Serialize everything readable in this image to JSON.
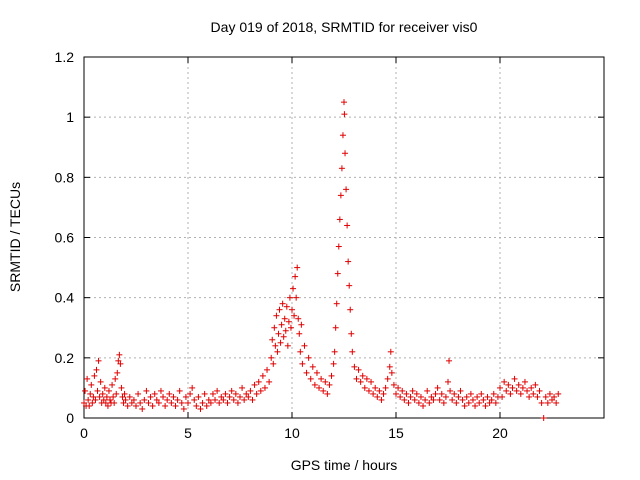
{
  "chart_data": {
    "type": "scatter",
    "title": "Day 019 of 2018, SRMTID for receiver vis0",
    "xlabel": "GPS time / hours",
    "ylabel": "SRMTID / TECUs",
    "xlim": [
      0,
      25
    ],
    "ylim": [
      0,
      1.2
    ],
    "xticks": [
      0,
      5,
      10,
      15,
      20
    ],
    "xtick_labels": [
      "0",
      "5",
      "10",
      "15",
      "20"
    ],
    "yticks": [
      0,
      0.2,
      0.4,
      0.6,
      0.8,
      1.0,
      1.2
    ],
    "ytick_labels": [
      "0",
      "0.2",
      "0.4",
      "0.6",
      "0.8",
      "1",
      "1.2"
    ],
    "grid": true,
    "marker": "+",
    "color": "#e00000",
    "series": [
      {
        "name": "SRMTID vis0",
        "points": [
          [
            0.0,
            0.05
          ],
          [
            0.05,
            0.09
          ],
          [
            0.1,
            0.04
          ],
          [
            0.15,
            0.13
          ],
          [
            0.2,
            0.06
          ],
          [
            0.25,
            0.04
          ],
          [
            0.3,
            0.08
          ],
          [
            0.35,
            0.11
          ],
          [
            0.4,
            0.05
          ],
          [
            0.45,
            0.07
          ],
          [
            0.5,
            0.14
          ],
          [
            0.55,
            0.06
          ],
          [
            0.6,
            0.16
          ],
          [
            0.65,
            0.09
          ],
          [
            0.7,
            0.19
          ],
          [
            0.75,
            0.07
          ],
          [
            0.8,
            0.12
          ],
          [
            0.85,
            0.05
          ],
          [
            0.9,
            0.08
          ],
          [
            0.95,
            0.06
          ],
          [
            1.0,
            0.1
          ],
          [
            1.05,
            0.05
          ],
          [
            1.1,
            0.07
          ],
          [
            1.15,
            0.04
          ],
          [
            1.2,
            0.09
          ],
          [
            1.25,
            0.06
          ],
          [
            1.3,
            0.05
          ],
          [
            1.35,
            0.11
          ],
          [
            1.4,
            0.07
          ],
          [
            1.45,
            0.05
          ],
          [
            1.5,
            0.13
          ],
          [
            1.55,
            0.08
          ],
          [
            1.6,
            0.15
          ],
          [
            1.65,
            0.19
          ],
          [
            1.7,
            0.21
          ],
          [
            1.75,
            0.18
          ],
          [
            1.8,
            0.1
          ],
          [
            1.85,
            0.07
          ],
          [
            1.9,
            0.05
          ],
          [
            1.95,
            0.08
          ],
          [
            2.0,
            0.06
          ],
          [
            2.1,
            0.04
          ],
          [
            2.2,
            0.07
          ],
          [
            2.3,
            0.05
          ],
          [
            2.4,
            0.06
          ],
          [
            2.5,
            0.04
          ],
          [
            2.6,
            0.08
          ],
          [
            2.7,
            0.05
          ],
          [
            2.8,
            0.03
          ],
          [
            2.9,
            0.06
          ],
          [
            3.0,
            0.09
          ],
          [
            3.1,
            0.05
          ],
          [
            3.2,
            0.07
          ],
          [
            3.3,
            0.04
          ],
          [
            3.4,
            0.08
          ],
          [
            3.5,
            0.06
          ],
          [
            3.6,
            0.05
          ],
          [
            3.7,
            0.09
          ],
          [
            3.8,
            0.07
          ],
          [
            3.9,
            0.04
          ],
          [
            4.0,
            0.06
          ],
          [
            4.1,
            0.08
          ],
          [
            4.2,
            0.05
          ],
          [
            4.3,
            0.07
          ],
          [
            4.4,
            0.04
          ],
          [
            4.5,
            0.06
          ],
          [
            4.6,
            0.09
          ],
          [
            4.7,
            0.05
          ],
          [
            4.8,
            0.03
          ],
          [
            4.9,
            0.07
          ],
          [
            5.0,
            0.05
          ],
          [
            5.1,
            0.08
          ],
          [
            5.2,
            0.1
          ],
          [
            5.3,
            0.06
          ],
          [
            5.4,
            0.04
          ],
          [
            5.5,
            0.07
          ],
          [
            5.6,
            0.03
          ],
          [
            5.7,
            0.05
          ],
          [
            5.8,
            0.08
          ],
          [
            5.9,
            0.04
          ],
          [
            6.0,
            0.06
          ],
          [
            6.1,
            0.05
          ],
          [
            6.2,
            0.08
          ],
          [
            6.3,
            0.06
          ],
          [
            6.4,
            0.09
          ],
          [
            6.5,
            0.05
          ],
          [
            6.6,
            0.07
          ],
          [
            6.7,
            0.06
          ],
          [
            6.8,
            0.08
          ],
          [
            6.9,
            0.05
          ],
          [
            7.0,
            0.07
          ],
          [
            7.1,
            0.09
          ],
          [
            7.2,
            0.06
          ],
          [
            7.3,
            0.08
          ],
          [
            7.4,
            0.05
          ],
          [
            7.5,
            0.07
          ],
          [
            7.6,
            0.1
          ],
          [
            7.7,
            0.06
          ],
          [
            7.8,
            0.08
          ],
          [
            7.9,
            0.07
          ],
          [
            8.0,
            0.09
          ],
          [
            8.1,
            0.06
          ],
          [
            8.2,
            0.11
          ],
          [
            8.3,
            0.08
          ],
          [
            8.4,
            0.12
          ],
          [
            8.5,
            0.09
          ],
          [
            8.6,
            0.14
          ],
          [
            8.7,
            0.1
          ],
          [
            8.8,
            0.16
          ],
          [
            8.9,
            0.12
          ],
          [
            9.0,
            0.2
          ],
          [
            9.05,
            0.26
          ],
          [
            9.1,
            0.18
          ],
          [
            9.15,
            0.3
          ],
          [
            9.2,
            0.24
          ],
          [
            9.25,
            0.34
          ],
          [
            9.3,
            0.22
          ],
          [
            9.35,
            0.28
          ],
          [
            9.4,
            0.36
          ],
          [
            9.45,
            0.25
          ],
          [
            9.5,
            0.31
          ],
          [
            9.55,
            0.38
          ],
          [
            9.6,
            0.27
          ],
          [
            9.65,
            0.33
          ],
          [
            9.7,
            0.29
          ],
          [
            9.75,
            0.37
          ],
          [
            9.8,
            0.24
          ],
          [
            9.85,
            0.32
          ],
          [
            9.9,
            0.4
          ],
          [
            9.95,
            0.3
          ],
          [
            10.0,
            0.36
          ],
          [
            10.05,
            0.43
          ],
          [
            10.1,
            0.34
          ],
          [
            10.15,
            0.47
          ],
          [
            10.2,
            0.4
          ],
          [
            10.25,
            0.5
          ],
          [
            10.3,
            0.33
          ],
          [
            10.35,
            0.28
          ],
          [
            10.4,
            0.22
          ],
          [
            10.45,
            0.31
          ],
          [
            10.5,
            0.18
          ],
          [
            10.6,
            0.24
          ],
          [
            10.7,
            0.15
          ],
          [
            10.8,
            0.2
          ],
          [
            10.9,
            0.13
          ],
          [
            11.0,
            0.17
          ],
          [
            11.1,
            0.11
          ],
          [
            11.2,
            0.15
          ],
          [
            11.3,
            0.1
          ],
          [
            11.4,
            0.13
          ],
          [
            11.5,
            0.09
          ],
          [
            11.6,
            0.12
          ],
          [
            11.7,
            0.08
          ],
          [
            11.8,
            0.11
          ],
          [
            11.9,
            0.14
          ],
          [
            12.0,
            0.18
          ],
          [
            12.05,
            0.22
          ],
          [
            12.1,
            0.3
          ],
          [
            12.15,
            0.38
          ],
          [
            12.2,
            0.48
          ],
          [
            12.25,
            0.57
          ],
          [
            12.3,
            0.66
          ],
          [
            12.35,
            0.74
          ],
          [
            12.4,
            0.83
          ],
          [
            12.45,
            0.94
          ],
          [
            12.5,
            1.05
          ],
          [
            12.52,
            1.01
          ],
          [
            12.55,
            0.88
          ],
          [
            12.6,
            0.76
          ],
          [
            12.65,
            0.64
          ],
          [
            12.7,
            0.52
          ],
          [
            12.75,
            0.44
          ],
          [
            12.8,
            0.36
          ],
          [
            12.85,
            0.28
          ],
          [
            12.9,
            0.22
          ],
          [
            13.0,
            0.17
          ],
          [
            13.1,
            0.13
          ],
          [
            13.2,
            0.16
          ],
          [
            13.3,
            0.12
          ],
          [
            13.4,
            0.14
          ],
          [
            13.5,
            0.1
          ],
          [
            13.6,
            0.13
          ],
          [
            13.7,
            0.09
          ],
          [
            13.8,
            0.12
          ],
          [
            13.9,
            0.08
          ],
          [
            14.0,
            0.1
          ],
          [
            14.1,
            0.07
          ],
          [
            14.2,
            0.09
          ],
          [
            14.3,
            0.06
          ],
          [
            14.4,
            0.08
          ],
          [
            14.5,
            0.1
          ],
          [
            14.6,
            0.13
          ],
          [
            14.7,
            0.17
          ],
          [
            14.75,
            0.22
          ],
          [
            14.8,
            0.15
          ],
          [
            14.9,
            0.11
          ],
          [
            15.0,
            0.08
          ],
          [
            15.1,
            0.1
          ],
          [
            15.2,
            0.07
          ],
          [
            15.3,
            0.09
          ],
          [
            15.4,
            0.06
          ],
          [
            15.5,
            0.08
          ],
          [
            15.6,
            0.05
          ],
          [
            15.7,
            0.07
          ],
          [
            15.8,
            0.09
          ],
          [
            15.9,
            0.06
          ],
          [
            16.0,
            0.08
          ],
          [
            16.1,
            0.05
          ],
          [
            16.2,
            0.07
          ],
          [
            16.3,
            0.04
          ],
          [
            16.4,
            0.06
          ],
          [
            16.5,
            0.09
          ],
          [
            16.6,
            0.05
          ],
          [
            16.7,
            0.07
          ],
          [
            16.8,
            0.06
          ],
          [
            16.9,
            0.08
          ],
          [
            17.0,
            0.1
          ],
          [
            17.1,
            0.06
          ],
          [
            17.2,
            0.08
          ],
          [
            17.3,
            0.05
          ],
          [
            17.4,
            0.07
          ],
          [
            17.5,
            0.12
          ],
          [
            17.55,
            0.19
          ],
          [
            17.6,
            0.09
          ],
          [
            17.7,
            0.06
          ],
          [
            17.8,
            0.08
          ],
          [
            17.9,
            0.05
          ],
          [
            18.0,
            0.07
          ],
          [
            18.1,
            0.09
          ],
          [
            18.2,
            0.06
          ],
          [
            18.3,
            0.04
          ],
          [
            18.4,
            0.07
          ],
          [
            18.5,
            0.05
          ],
          [
            18.6,
            0.08
          ],
          [
            18.7,
            0.06
          ],
          [
            18.8,
            0.04
          ],
          [
            18.9,
            0.07
          ],
          [
            19.0,
            0.05
          ],
          [
            19.1,
            0.08
          ],
          [
            19.2,
            0.06
          ],
          [
            19.3,
            0.04
          ],
          [
            19.4,
            0.07
          ],
          [
            19.5,
            0.05
          ],
          [
            19.6,
            0.06
          ],
          [
            19.7,
            0.08
          ],
          [
            19.8,
            0.05
          ],
          [
            19.9,
            0.07
          ],
          [
            20.0,
            0.1
          ],
          [
            20.1,
            0.07
          ],
          [
            20.2,
            0.12
          ],
          [
            20.3,
            0.09
          ],
          [
            20.4,
            0.11
          ],
          [
            20.5,
            0.08
          ],
          [
            20.6,
            0.1
          ],
          [
            20.7,
            0.13
          ],
          [
            20.8,
            0.09
          ],
          [
            20.9,
            0.11
          ],
          [
            21.0,
            0.08
          ],
          [
            21.1,
            0.1
          ],
          [
            21.2,
            0.12
          ],
          [
            21.3,
            0.09
          ],
          [
            21.4,
            0.07
          ],
          [
            21.5,
            0.1
          ],
          [
            21.6,
            0.08
          ],
          [
            21.7,
            0.11
          ],
          [
            21.8,
            0.07
          ],
          [
            21.9,
            0.09
          ],
          [
            22.0,
            0.05
          ],
          [
            22.1,
            0.0
          ],
          [
            22.2,
            0.07
          ],
          [
            22.3,
            0.05
          ],
          [
            22.4,
            0.08
          ],
          [
            22.5,
            0.06
          ],
          [
            22.6,
            0.07
          ],
          [
            22.7,
            0.05
          ],
          [
            22.8,
            0.08
          ]
        ]
      }
    ]
  }
}
